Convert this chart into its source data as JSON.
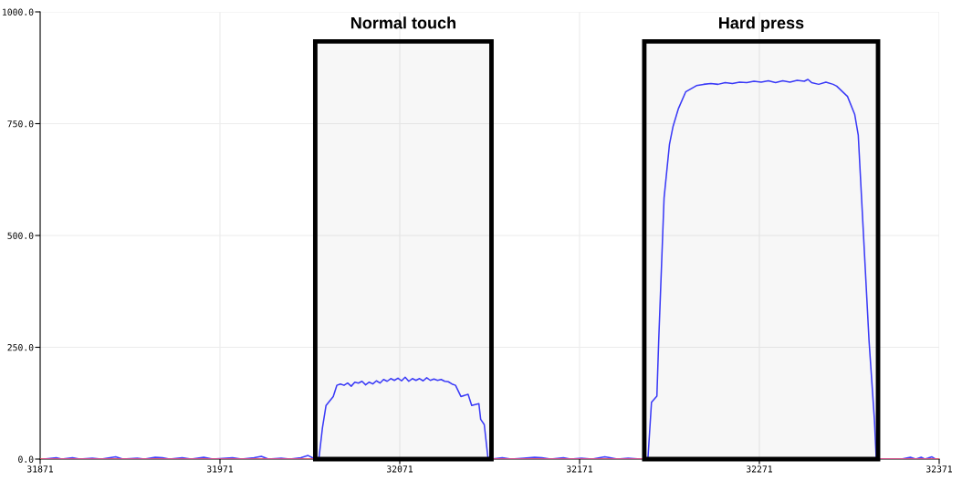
{
  "chart_data": {
    "type": "line",
    "xlim": [
      31871,
      32371
    ],
    "ylim": [
      0,
      1000
    ],
    "xticks": [
      31871,
      31971,
      32071,
      32171,
      32271,
      32371
    ],
    "yticks": [
      {
        "value": 0,
        "label": "0.0"
      },
      {
        "value": 250,
        "label": "250.0"
      },
      {
        "value": 500,
        "label": "500.0"
      },
      {
        "value": 750,
        "label": "750.0"
      },
      {
        "value": 1000,
        "label": "1000.0"
      }
    ],
    "grid": true,
    "line_style": "solid",
    "marker": "none",
    "series": [
      {
        "color": "#3c3cff",
        "x": [
          31873,
          31880,
          31883,
          31889,
          31893,
          31900,
          31905,
          31913,
          31917,
          31925,
          31929,
          31935,
          31939,
          31943,
          31950,
          31955,
          31962,
          31967,
          31978,
          31983,
          31990,
          31994,
          31998,
          32005,
          32010,
          32016,
          32020,
          32023,
          32026,
          32028,
          32030,
          32034,
          32036,
          32038,
          32040,
          32042,
          32044,
          32046,
          32048,
          32050,
          32052,
          32054,
          32056,
          32058,
          32060,
          32062,
          32064,
          32066,
          32068,
          32070,
          32072,
          32074,
          32076,
          32078,
          32080,
          32082,
          32084,
          32086,
          32088,
          32090,
          32092,
          32094,
          32096,
          32098,
          32100,
          32102,
          32105,
          32109,
          32111,
          32115,
          32116,
          32118,
          32120,
          32122,
          32128,
          32133,
          32140,
          32146,
          32150,
          32155,
          32162,
          32166,
          32172,
          32178,
          32185,
          32188,
          32192,
          32198,
          32205,
          32209,
          32211,
          32214,
          32215,
          32218,
          32221,
          32223,
          32226,
          32230,
          32236,
          32240,
          32244,
          32248,
          32252,
          32256,
          32260,
          32264,
          32268,
          32272,
          32276,
          32280,
          32284,
          32288,
          32292,
          32296,
          32298,
          32300,
          32304,
          32308,
          32312,
          32314,
          32320,
          32324,
          32326,
          32332,
          32335,
          32336,
          32340,
          32350,
          32355,
          32358,
          32361,
          32363,
          32367,
          32369
        ],
        "values": [
          0,
          3,
          0,
          3,
          0,
          2,
          0,
          5,
          0,
          2,
          0,
          4,
          3,
          0,
          3,
          0,
          4,
          0,
          3,
          0,
          3,
          6,
          0,
          2,
          0,
          3,
          8,
          2,
          0,
          70,
          120,
          140,
          165,
          168,
          165,
          170,
          163,
          172,
          170,
          174,
          166,
          172,
          168,
          175,
          170,
          178,
          174,
          180,
          176,
          181,
          175,
          183,
          174,
          180,
          176,
          180,
          175,
          182,
          176,
          179,
          176,
          178,
          174,
          173,
          168,
          165,
          140,
          145,
          120,
          124,
          89,
          77,
          4,
          0,
          3,
          0,
          2,
          4,
          3,
          0,
          3,
          0,
          2,
          0,
          5,
          3,
          0,
          2,
          0,
          0,
          127,
          141,
          264,
          584,
          704,
          744,
          784,
          821,
          835,
          838,
          840,
          838,
          842,
          840,
          843,
          842,
          845,
          843,
          846,
          842,
          846,
          843,
          847,
          845,
          849,
          842,
          838,
          843,
          838,
          834,
          811,
          771,
          724,
          264,
          87,
          0,
          0,
          0,
          4,
          0,
          4,
          0,
          5,
          0
        ]
      },
      {
        "color": "#ff4d6a",
        "x": [
          31871,
          32371
        ],
        "values": [
          0,
          0
        ]
      }
    ],
    "bands": [
      {
        "axis": "x",
        "from": 32024,
        "to": 32122,
        "label": "Normal touch",
        "color": "#000000"
      },
      {
        "axis": "x",
        "from": 32207,
        "to": 32337,
        "label": "Hard press",
        "color": "#000000"
      }
    ]
  }
}
